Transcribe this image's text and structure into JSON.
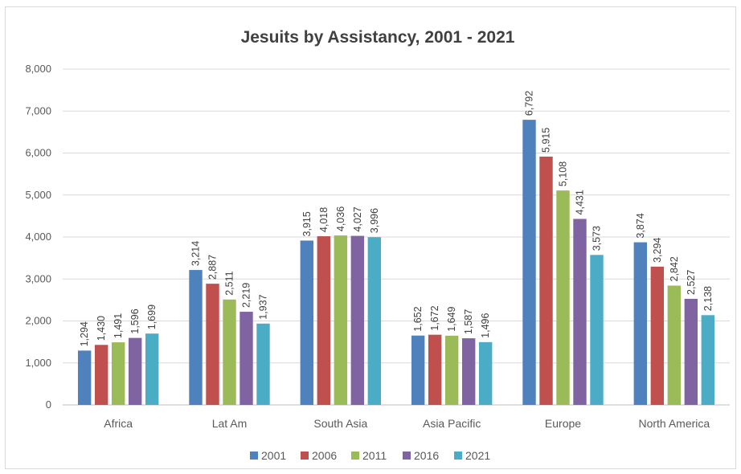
{
  "chart_data": {
    "type": "bar",
    "title": "Jesuits by Assistancy, 2001 - 2021",
    "xlabel": "",
    "ylabel": "",
    "ylim": [
      0,
      8000
    ],
    "yticks": [
      "0",
      "1,000",
      "2,000",
      "3,000",
      "4,000",
      "5,000",
      "6,000",
      "7,000",
      "8,000"
    ],
    "grid": true,
    "legend_position": "bottom",
    "categories": [
      "Africa",
      "Lat Am",
      "South Asia",
      "Asia Pacific",
      "Europe",
      "North America"
    ],
    "series": [
      {
        "name": "2001",
        "color": "#4f81bd",
        "values": [
          1294,
          3214,
          3915,
          1652,
          6792,
          3874
        ]
      },
      {
        "name": "2006",
        "color": "#c0504d",
        "values": [
          1430,
          2887,
          4018,
          1672,
          5915,
          3294
        ]
      },
      {
        "name": "2011",
        "color": "#9bbb59",
        "values": [
          1491,
          2511,
          4036,
          1649,
          5108,
          2842
        ]
      },
      {
        "name": "2016",
        "color": "#8064a2",
        "values": [
          1596,
          2219,
          4027,
          1587,
          4431,
          2527
        ]
      },
      {
        "name": "2021",
        "color": "#4bacc6",
        "values": [
          1699,
          1937,
          3996,
          1496,
          3573,
          2138
        ]
      }
    ]
  }
}
